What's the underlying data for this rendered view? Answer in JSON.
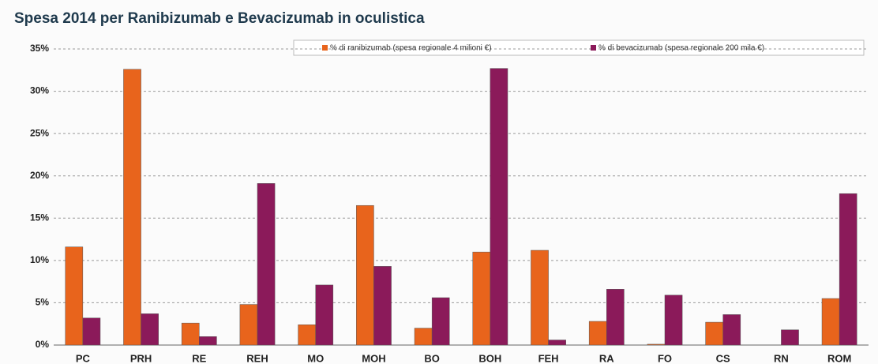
{
  "chart_data": {
    "type": "bar",
    "title": "Spesa 2014 per Ranibizumab e Bevacizumab in oculistica",
    "categories": [
      "PC",
      "PRH",
      "RE",
      "REH",
      "MO",
      "MOH",
      "BO",
      "BOH",
      "FEH",
      "RA",
      "FO",
      "CS",
      "RN",
      "ROM"
    ],
    "series": [
      {
        "name": "% di ranibizumab (spesa regionale 4 milioni €)",
        "color": "#e8641c",
        "values": [
          11.6,
          32.6,
          2.6,
          4.8,
          2.4,
          16.5,
          2.0,
          11.0,
          11.2,
          2.8,
          0.1,
          2.7,
          0,
          5.5
        ]
      },
      {
        "name": "% di bevacizumab (spesa regionale 200 mila €)",
        "color": "#8b1a5a",
        "values": [
          3.2,
          3.7,
          1.0,
          19.1,
          7.1,
          9.3,
          5.6,
          32.7,
          0.6,
          6.6,
          5.9,
          3.6,
          1.8,
          17.9
        ]
      }
    ],
    "ylim": [
      0,
      35
    ],
    "yticks": [
      {
        "value": 0,
        "label": "0%"
      },
      {
        "value": 5,
        "label": "5%"
      },
      {
        "value": 10,
        "label": "10%"
      },
      {
        "value": 15,
        "label": "15%"
      },
      {
        "value": 20,
        "label": "20%"
      },
      {
        "value": 25,
        "label": "25%"
      },
      {
        "value": 30,
        "label": "30%"
      },
      {
        "value": 35,
        "label": "35%"
      }
    ],
    "grid": true
  }
}
